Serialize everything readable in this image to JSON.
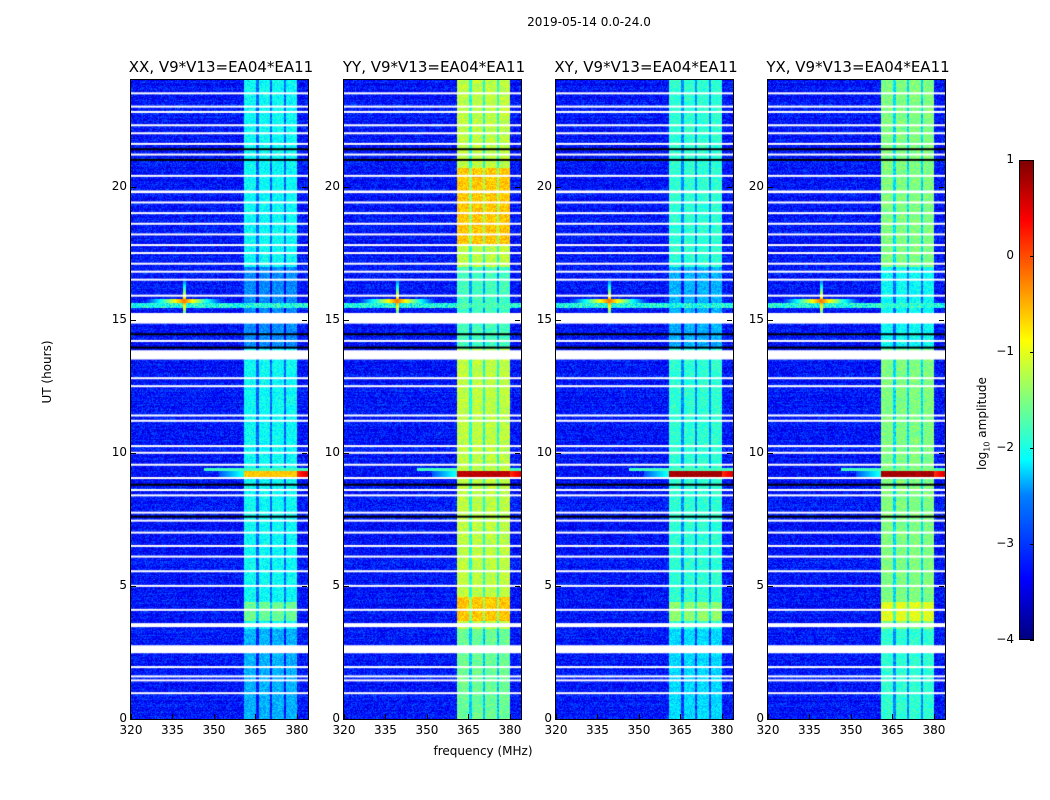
{
  "chart_data": {
    "type": "heatmap",
    "title": "2019-05-14 0.0-24.0",
    "xlabel": "frequency (MHz)",
    "ylabel": "UT (hours)",
    "xlim": [
      320,
      384
    ],
    "ylim": [
      0,
      24
    ],
    "xticks": [
      "320",
      "335",
      "350",
      "365",
      "380"
    ],
    "xtick_values": [
      320,
      335,
      350,
      365,
      380
    ],
    "yticks": [
      "0",
      "5",
      "10",
      "15",
      "20"
    ],
    "ytick_values": [
      0,
      5,
      10,
      15,
      20
    ],
    "colorbar": {
      "label": "log10 amplitude",
      "label_main": "log",
      "label_sub": "10",
      "label_tail": " amplitude",
      "range": [
        -4,
        1
      ],
      "ticks": [
        "1",
        "0",
        "−1",
        "−2",
        "−3",
        "−4"
      ],
      "tick_values": [
        1,
        0,
        -1,
        -2,
        -3,
        -4
      ],
      "colormap": "jet"
    },
    "band_mhz": [
      360.5,
      380
    ],
    "subband_gaps_mhz": [
      365.5,
      370.5,
      375.5
    ],
    "rfi_source": {
      "freq_mhz": 339,
      "hour": 15.7
    },
    "flagged_blocks_hours": [
      [
        2.47,
        2.77
      ],
      [
        3.45,
        3.6
      ],
      [
        13.5,
        13.85
      ],
      [
        14.85,
        15.25
      ],
      [
        19.75,
        19.85
      ]
    ],
    "flagged_lines_hours": [
      0.97,
      1.45,
      1.6,
      1.95,
      4.1,
      5.0,
      5.55,
      6.1,
      6.5,
      7.0,
      7.45,
      7.75,
      8.4,
      8.6,
      9.05,
      9.55,
      10.0,
      10.25,
      11.2,
      11.4,
      12.5,
      12.8,
      14.2,
      15.9,
      16.5,
      16.8,
      17.1,
      17.5,
      17.8,
      18.2,
      18.6,
      19.0,
      19.4,
      20.4,
      21.2,
      21.6,
      22.0,
      22.3,
      22.8,
      23.0,
      23.5
    ],
    "dark_lines_hours": [
      7.6,
      8.8,
      13.95,
      14.45,
      21.0,
      21.4
    ],
    "panels": [
      {
        "title": "XX, V9*V13=EA04*EA11",
        "band_level": -2.1,
        "hot_level": -0.6
      },
      {
        "title": "YY, V9*V13=EA04*EA11",
        "band_level": -1.2,
        "hot_level": 0.7
      },
      {
        "title": "XY, V9*V13=EA04*EA11",
        "band_level": -1.9,
        "hot_level": 0.8
      },
      {
        "title": "YX, V9*V13=EA04*EA11",
        "band_level": -1.5,
        "hot_level": 0.8
      }
    ]
  }
}
